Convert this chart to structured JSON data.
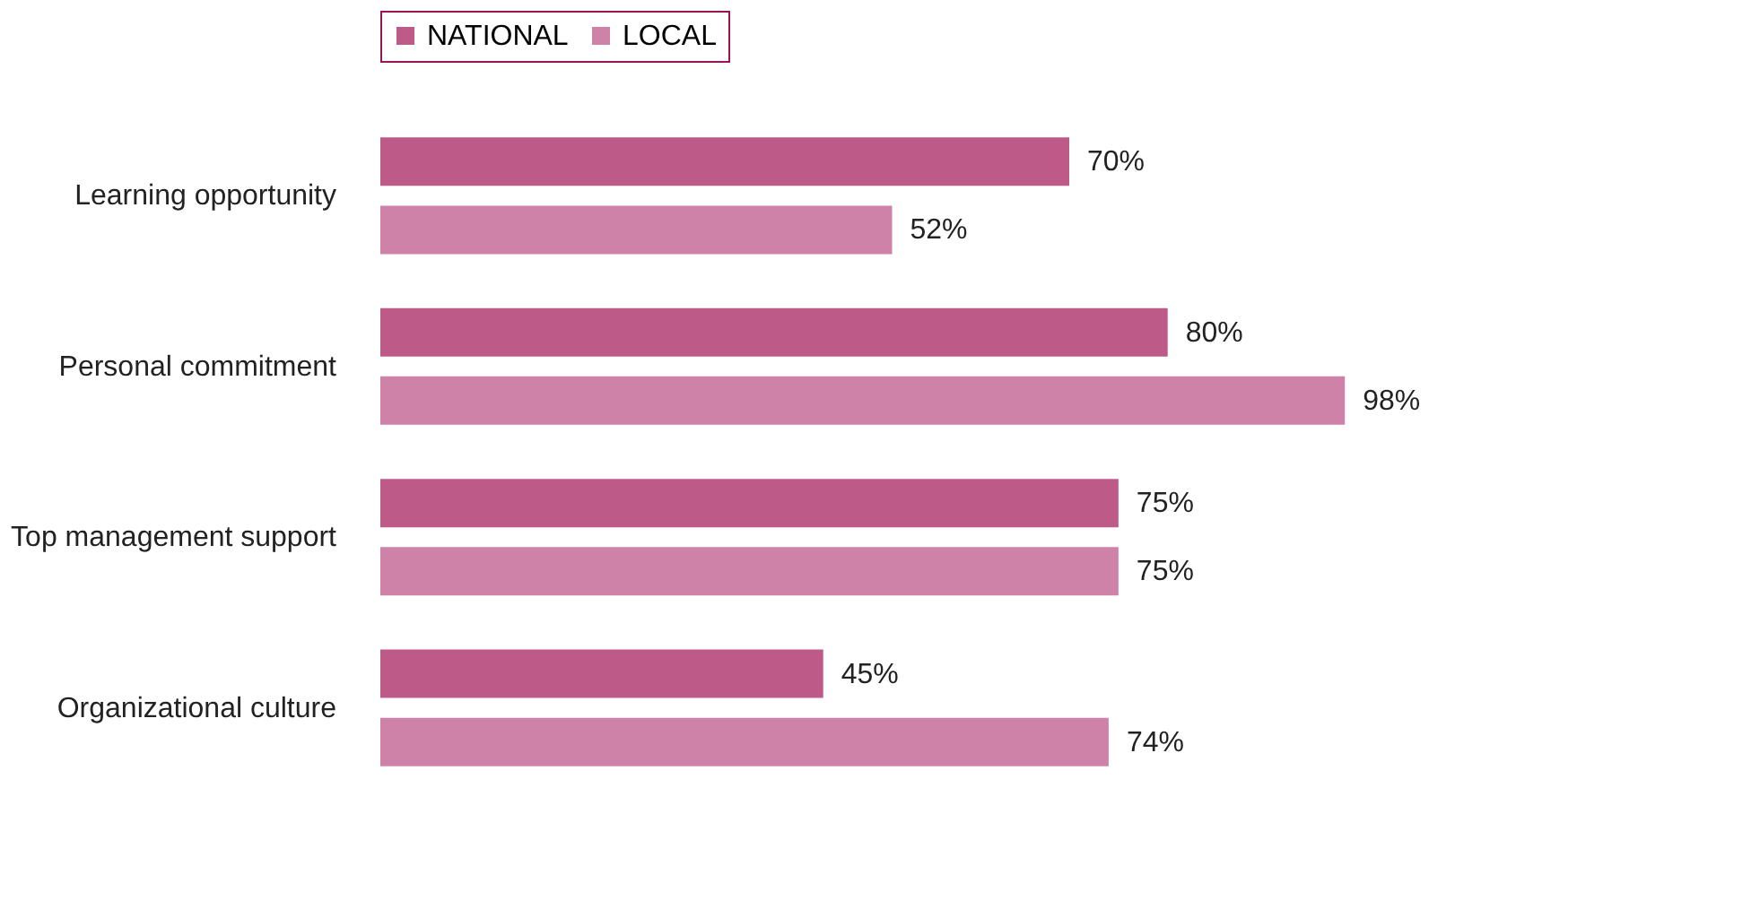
{
  "chart_data": {
    "type": "bar",
    "orientation": "horizontal",
    "categories": [
      "Learning opportunity",
      "Personal commitment",
      "Top management support",
      "Organizational culture"
    ],
    "series": [
      {
        "name": "NATIONAL",
        "color": "#bd5a87",
        "values": [
          70,
          80,
          75,
          45
        ],
        "value_labels": [
          "70%",
          "80%",
          "75%",
          "45%"
        ]
      },
      {
        "name": "LOCAL",
        "color": "#cf82a8",
        "values": [
          52,
          98,
          75,
          74
        ],
        "value_labels": [
          "52%",
          "98%",
          "75%",
          "74%"
        ]
      }
    ],
    "legend": "top",
    "grid": false
  }
}
